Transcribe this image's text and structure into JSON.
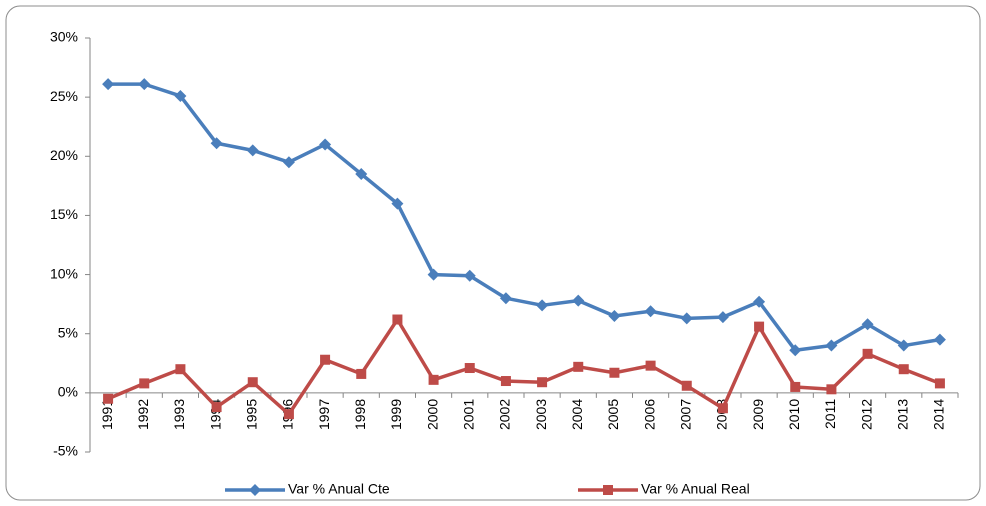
{
  "chart_data": {
    "type": "line",
    "categories": [
      "1991",
      "1992",
      "1993",
      "1994",
      "1995",
      "1996",
      "1997",
      "1998",
      "1999",
      "2000",
      "2001",
      "2002",
      "2003",
      "2004",
      "2005",
      "2006",
      "2007",
      "2008",
      "2009",
      "2010",
      "2011",
      "2012",
      "2013",
      "2014"
    ],
    "series": [
      {
        "name": "Var % Anual Cte",
        "color": "#4a7ebb",
        "marker": "diamond",
        "values": [
          26.1,
          26.1,
          25.1,
          21.1,
          20.5,
          19.5,
          21.0,
          18.5,
          16.0,
          10.0,
          9.9,
          8.0,
          7.4,
          7.8,
          6.5,
          6.9,
          6.3,
          6.4,
          7.7,
          3.6,
          4.0,
          5.8,
          4.0,
          4.5
        ]
      },
      {
        "name": "Var % Anual Real",
        "color": "#be4b48",
        "marker": "square",
        "values": [
          -0.5,
          0.8,
          2.0,
          -1.2,
          0.9,
          -1.8,
          2.8,
          1.6,
          6.2,
          1.1,
          2.1,
          1.0,
          0.9,
          2.2,
          1.7,
          2.3,
          0.6,
          -1.3,
          5.6,
          0.5,
          0.3,
          3.3,
          2.0,
          0.8
        ]
      }
    ],
    "ylim": [
      -5,
      30
    ],
    "yticks": [
      {
        "value": -5,
        "label": "-5%"
      },
      {
        "value": 0,
        "label": "0%"
      },
      {
        "value": 5,
        "label": "5%"
      },
      {
        "value": 10,
        "label": "10%"
      },
      {
        "value": 15,
        "label": "15%"
      },
      {
        "value": 20,
        "label": "20%"
      },
      {
        "value": 25,
        "label": "25%"
      },
      {
        "value": 30,
        "label": "30%"
      }
    ],
    "legend": "bottom"
  }
}
